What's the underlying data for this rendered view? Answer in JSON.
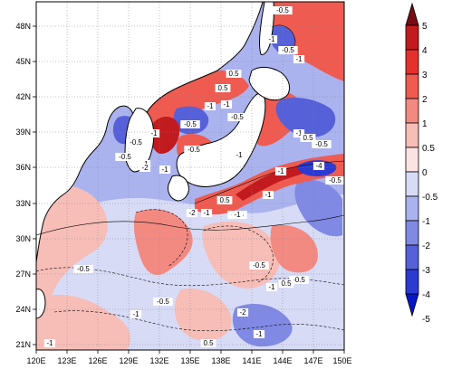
{
  "map": {
    "lat_labels": [
      "48N",
      "45N",
      "42N",
      "39N",
      "36N",
      "33N",
      "30N",
      "27N",
      "24N",
      "21N"
    ],
    "lon_labels": [
      "120E",
      "123E",
      "126E",
      "129E",
      "132E",
      "135E",
      "138E",
      "141E",
      "144E",
      "147E",
      "150E"
    ],
    "colorbar": {
      "labels": [
        "5",
        "4",
        "3",
        "2",
        "1",
        "0.5",
        "0",
        "-0.5",
        "-1",
        "-2",
        "-3",
        "-4",
        "-5"
      ],
      "colors": [
        "#7a0b12",
        "#c21b1f",
        "#e5312e",
        "#ef5b50",
        "#f28a82",
        "#f7bdb7",
        "#fbe3e1",
        "#d7dbf6",
        "#aab3ee",
        "#8089e3",
        "#5560d9",
        "#2c3ad1",
        "#0716c6"
      ]
    },
    "contour_labels": [
      {
        "text": "-0.5"
      },
      {
        "text": "-1"
      },
      {
        "text": "-0.5"
      },
      {
        "text": "-1"
      },
      {
        "text": "0.5"
      },
      {
        "text": "0.5"
      },
      {
        "text": "-1"
      },
      {
        "text": "-0.5"
      },
      {
        "text": "-1"
      },
      {
        "text": "-0.5"
      },
      {
        "text": "-1"
      },
      {
        "text": "-0.5"
      },
      {
        "text": "-0.5"
      },
      {
        "text": "-1"
      },
      {
        "text": "-2"
      },
      {
        "text": "-1"
      },
      {
        "text": "-0.5"
      },
      {
        "text": "-1"
      },
      {
        "text": "0.5"
      },
      {
        "text": "-0.5"
      },
      {
        "text": "-1"
      },
      {
        "text": "-2"
      },
      {
        "text": "-1"
      },
      {
        "text": "0.5"
      },
      {
        "text": "-0.5"
      },
      {
        "text": "-4"
      },
      {
        "text": "-1"
      },
      {
        "text": "-0.5"
      },
      {
        "text": "-1"
      },
      {
        "text": "-0.5"
      },
      {
        "text": "-1"
      },
      {
        "text": "-0.5"
      },
      {
        "text": "0.5"
      },
      {
        "text": "-1"
      },
      {
        "text": "-2"
      },
      {
        "text": "-1"
      },
      {
        "text": "0.5"
      },
      {
        "text": "-0.5"
      },
      {
        "text": "-1"
      },
      {
        "text": "-0.5"
      },
      {
        "text": "-1"
      }
    ]
  }
}
